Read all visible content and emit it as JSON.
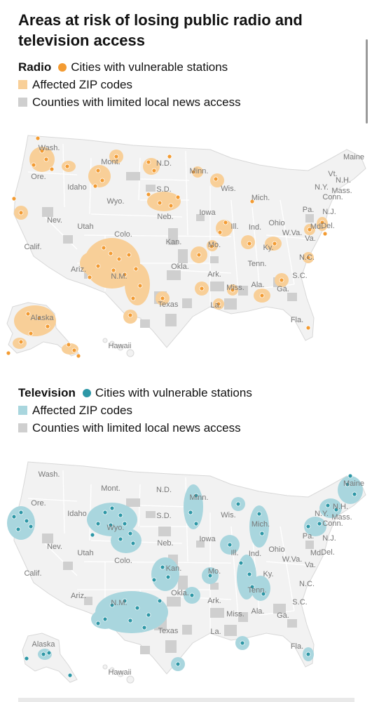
{
  "title": "Areas at risk of losing public radio and television access",
  "colors": {
    "radio_dot": "#f39b32",
    "radio_zip": "#f8cf98",
    "tv_dot": "#2d97a6",
    "tv_zip": "#a9d6de",
    "counties": "#cfcfcf",
    "land": "#f2f2f2",
    "borders": "#ffffff"
  },
  "radio": {
    "heading": "Radio",
    "dot_label": "Cities with vulnerable stations",
    "zip_label": "Affected ZIP codes",
    "county_label": "Counties with limited local news access"
  },
  "television": {
    "heading": "Television",
    "dot_label": "Cities with vulnerable stations",
    "zip_label": "Affected ZIP codes",
    "county_label": "Counties with limited local news access"
  },
  "radio_states": [
    "Wash.",
    "Ore.",
    "Idaho",
    "Mont.",
    "N.D.",
    "Minn.",
    "Wis.",
    "Mich.",
    "S.D.",
    "Wyo.",
    "Neb.",
    "Iowa",
    "Nev.",
    "Utah",
    "Colo.",
    "Kan.",
    "Mo.",
    "Ill.",
    "Ind.",
    "Ohio",
    "Pa.",
    "N.Y.",
    "Vt.",
    "N.H.",
    "Maine",
    "Mass.",
    "Conn.",
    "N.J.",
    "Del.",
    "Md.",
    "W.Va.",
    "Va.",
    "Ky.",
    "Calif.",
    "Ariz.",
    "N.M.",
    "Okla.",
    "Ark.",
    "Tenn.",
    "N.C.",
    "S.C.",
    "Ga.",
    "Ala.",
    "Miss.",
    "La.",
    "Texas",
    "Fla.",
    "Alaska",
    "Hawaii"
  ],
  "tv_states": [
    "Wash.",
    "Ore.",
    "Idaho",
    "Mont.",
    "N.D.",
    "Minn.",
    "Wis.",
    "Mich.",
    "S.D.",
    "Wyo.",
    "Neb.",
    "Iowa",
    "Nev.",
    "Utah",
    "Colo.",
    "Kan.",
    "Mo.",
    "Ill.",
    "Ind.",
    "Ohio",
    "Pa.",
    "N.Y.",
    "N.H.",
    "Maine",
    "Mass.",
    "Conn.",
    "N.J.",
    "Del.",
    "Md.",
    "W.Va.",
    "Va.",
    "Ky.",
    "Calif.",
    "Ariz.",
    "N.M.",
    "Okla.",
    "Ark.",
    "Tenn.",
    "N.C.",
    "S.C.",
    "Ga.",
    "Ala.",
    "Miss.",
    "La.",
    "Texas",
    "Fla.",
    "Alaska",
    "Hawaii"
  ]
}
